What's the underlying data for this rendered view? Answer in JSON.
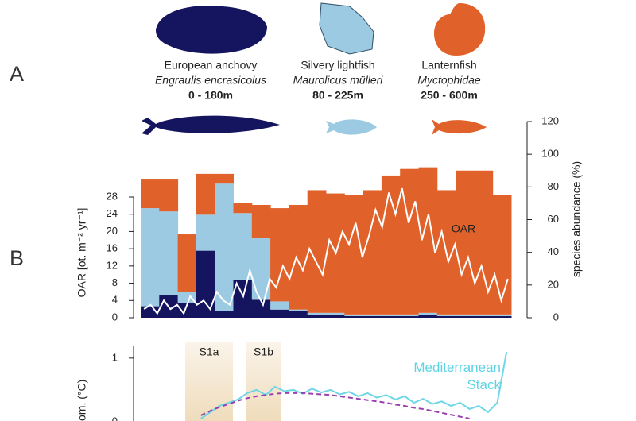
{
  "panel_labels": [
    "A",
    "B"
  ],
  "chart_data": [
    {
      "type": "area",
      "stacked": true,
      "categories": [
        null,
        null,
        null,
        null,
        null,
        null,
        null,
        null,
        null,
        null,
        null,
        null,
        null,
        null,
        null,
        null,
        null,
        null,
        null,
        null
      ],
      "ylim": [
        0,
        120
      ],
      "yticks": [
        0,
        20,
        40,
        60,
        80,
        100,
        120
      ],
      "ylabel": "species abundance (%)",
      "series": [
        {
          "name": "European anchovy",
          "subtitle": "Engraulis encrasicolus",
          "range": "0 - 180m",
          "color": "#14145f",
          "values": [
            7,
            14,
            9,
            41,
            4,
            23,
            11,
            5,
            4,
            2,
            2,
            1,
            1,
            1,
            1,
            2,
            1,
            1,
            1,
            1
          ]
        },
        {
          "name": "Silvery lightfish",
          "subtitle": "Maurolicus mülleri",
          "range": "80 - 225m",
          "color": "#9ccae3",
          "values": [
            60,
            51,
            7,
            22,
            78,
            41,
            38,
            5,
            1,
            1,
            1,
            1,
            1,
            1,
            1,
            1,
            1,
            1,
            1,
            1
          ]
        },
        {
          "name": "Lanternfish",
          "subtitle": "Myctophidae",
          "range": "250 - 600m",
          "color": "#e0622a",
          "values": [
            18,
            20,
            35,
            25,
            6,
            6,
            20,
            57,
            64,
            75,
            73,
            73,
            76,
            85,
            89,
            89,
            76,
            88,
            88,
            73
          ]
        }
      ]
    },
    {
      "type": "line",
      "categories": [
        null,
        null,
        null,
        null,
        null,
        null,
        null,
        null,
        null,
        null,
        null,
        null,
        null,
        null,
        null,
        null,
        null,
        null,
        null,
        null,
        null,
        null,
        null,
        null,
        null,
        null,
        null,
        null,
        null,
        null,
        null,
        null,
        null,
        null,
        null,
        null,
        null,
        null,
        null,
        null,
        null,
        null,
        null,
        null,
        null,
        null,
        null,
        null,
        null,
        null,
        null,
        null,
        null,
        null,
        null,
        null
      ],
      "ylim": [
        0,
        45.5
      ],
      "yticks": [
        0,
        4,
        8,
        12,
        16,
        20,
        24,
        28
      ],
      "ylabel": "OAR [ot. m⁻² yr⁻¹]",
      "series": [
        {
          "name": "OAR",
          "color": "#ffffff",
          "values": [
            2,
            3,
            1,
            4,
            2,
            3,
            1,
            5,
            3,
            4,
            2,
            6,
            4,
            3,
            8,
            5,
            11,
            6,
            3,
            9,
            7,
            12,
            9,
            14,
            11,
            16,
            13,
            10,
            18,
            15,
            20,
            17,
            22,
            14,
            19,
            25,
            21,
            29,
            24,
            30,
            22,
            27,
            18,
            24,
            15,
            20,
            13,
            17,
            10,
            14,
            8,
            12,
            6,
            10,
            4,
            9
          ]
        }
      ]
    },
    {
      "type": "line",
      "categories": [
        null,
        null,
        null,
        null,
        null,
        null,
        null,
        null,
        null,
        null,
        null,
        null,
        null,
        null,
        null,
        null,
        null,
        null,
        null,
        null,
        null,
        null,
        null,
        null,
        null,
        null,
        null,
        null,
        null,
        null,
        null,
        null,
        null,
        null,
        null,
        null,
        null,
        null,
        null,
        null
      ],
      "ylim": [
        0,
        1.26
      ],
      "yticks": [
        0,
        1
      ],
      "ylabel": "om. (°C)",
      "bands": [
        "S1a",
        "S1b"
      ],
      "series": [
        {
          "name": "Mediterranean Stack",
          "color": "#6fd6e6",
          "values": [
            null,
            null,
            null,
            null,
            null,
            null,
            0.05,
            0.15,
            0.25,
            0.3,
            0.35,
            0.45,
            0.5,
            0.42,
            0.55,
            0.48,
            0.5,
            0.44,
            0.52,
            0.46,
            0.5,
            0.43,
            0.47,
            0.4,
            0.45,
            0.38,
            0.42,
            0.35,
            0.4,
            0.3,
            0.36,
            0.28,
            0.32,
            0.25,
            0.3,
            0.2,
            0.25,
            0.15,
            0.3,
            1.1
          ]
        },
        {
          "color": "#9b3fb0",
          "dashed": true,
          "values": [
            null,
            null,
            null,
            null,
            null,
            null,
            0.1,
            0.17,
            0.23,
            0.28,
            0.33,
            0.37,
            0.4,
            0.42,
            0.44,
            0.45,
            0.45,
            0.45,
            0.44,
            0.43,
            0.42,
            0.4,
            0.38,
            0.36,
            0.34,
            0.32,
            0.3,
            0.27,
            0.25,
            0.22,
            0.2,
            0.17,
            0.14,
            0.11,
            0.08,
            0.05,
            null,
            null,
            null,
            null
          ]
        }
      ]
    }
  ]
}
